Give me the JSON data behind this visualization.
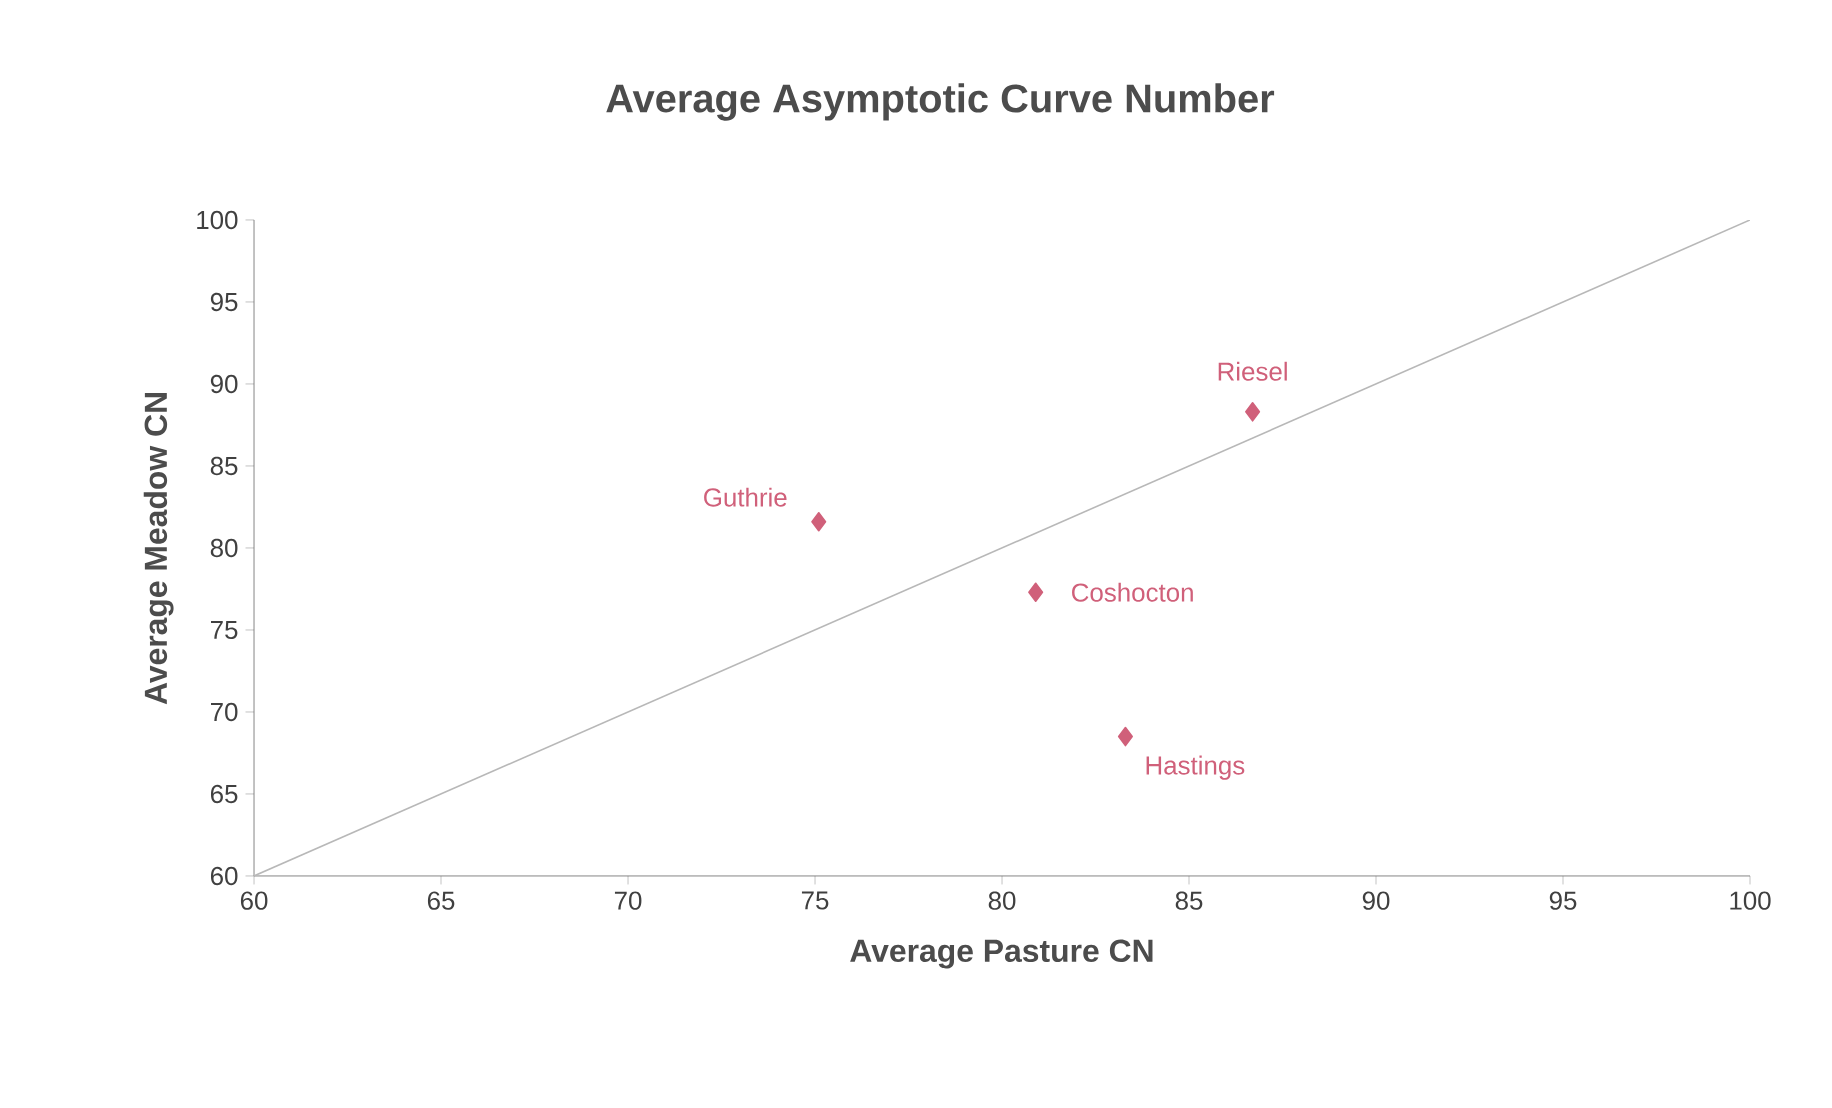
{
  "chart_data": {
    "type": "scatter",
    "title": "Average Asymptotic Curve Number",
    "xlabel": "Average Pasture CN",
    "ylabel": "Average Meadow CN",
    "xlim": [
      60,
      100
    ],
    "ylim": [
      60,
      100
    ],
    "xticks": [
      60,
      65,
      70,
      75,
      80,
      85,
      90,
      95,
      100
    ],
    "yticks": [
      60,
      65,
      70,
      75,
      80,
      85,
      90,
      95,
      100
    ],
    "grid": false,
    "marker": "diamond",
    "series": [
      {
        "color": "#d0607a",
        "x": [
          75.1,
          80.9,
          83.3,
          86.7
        ],
        "values": [
          81.6,
          77.3,
          68.5,
          88.3
        ]
      },
      {
        "type": "line",
        "color": "#b8b8b8",
        "marker": "none",
        "line_style": "solid",
        "x": [
          60,
          100
        ],
        "values": [
          60,
          100
        ]
      }
    ],
    "annotations": [
      {
        "text": "Guthrie",
        "x": 75.1,
        "y": 81.6
      },
      {
        "text": "Coshocton",
        "x": 80.9,
        "y": 77.3
      },
      {
        "text": "Hastings",
        "x": 83.3,
        "y": 68.5
      },
      {
        "text": "Riesel",
        "x": 86.7,
        "y": 88.3
      }
    ]
  }
}
